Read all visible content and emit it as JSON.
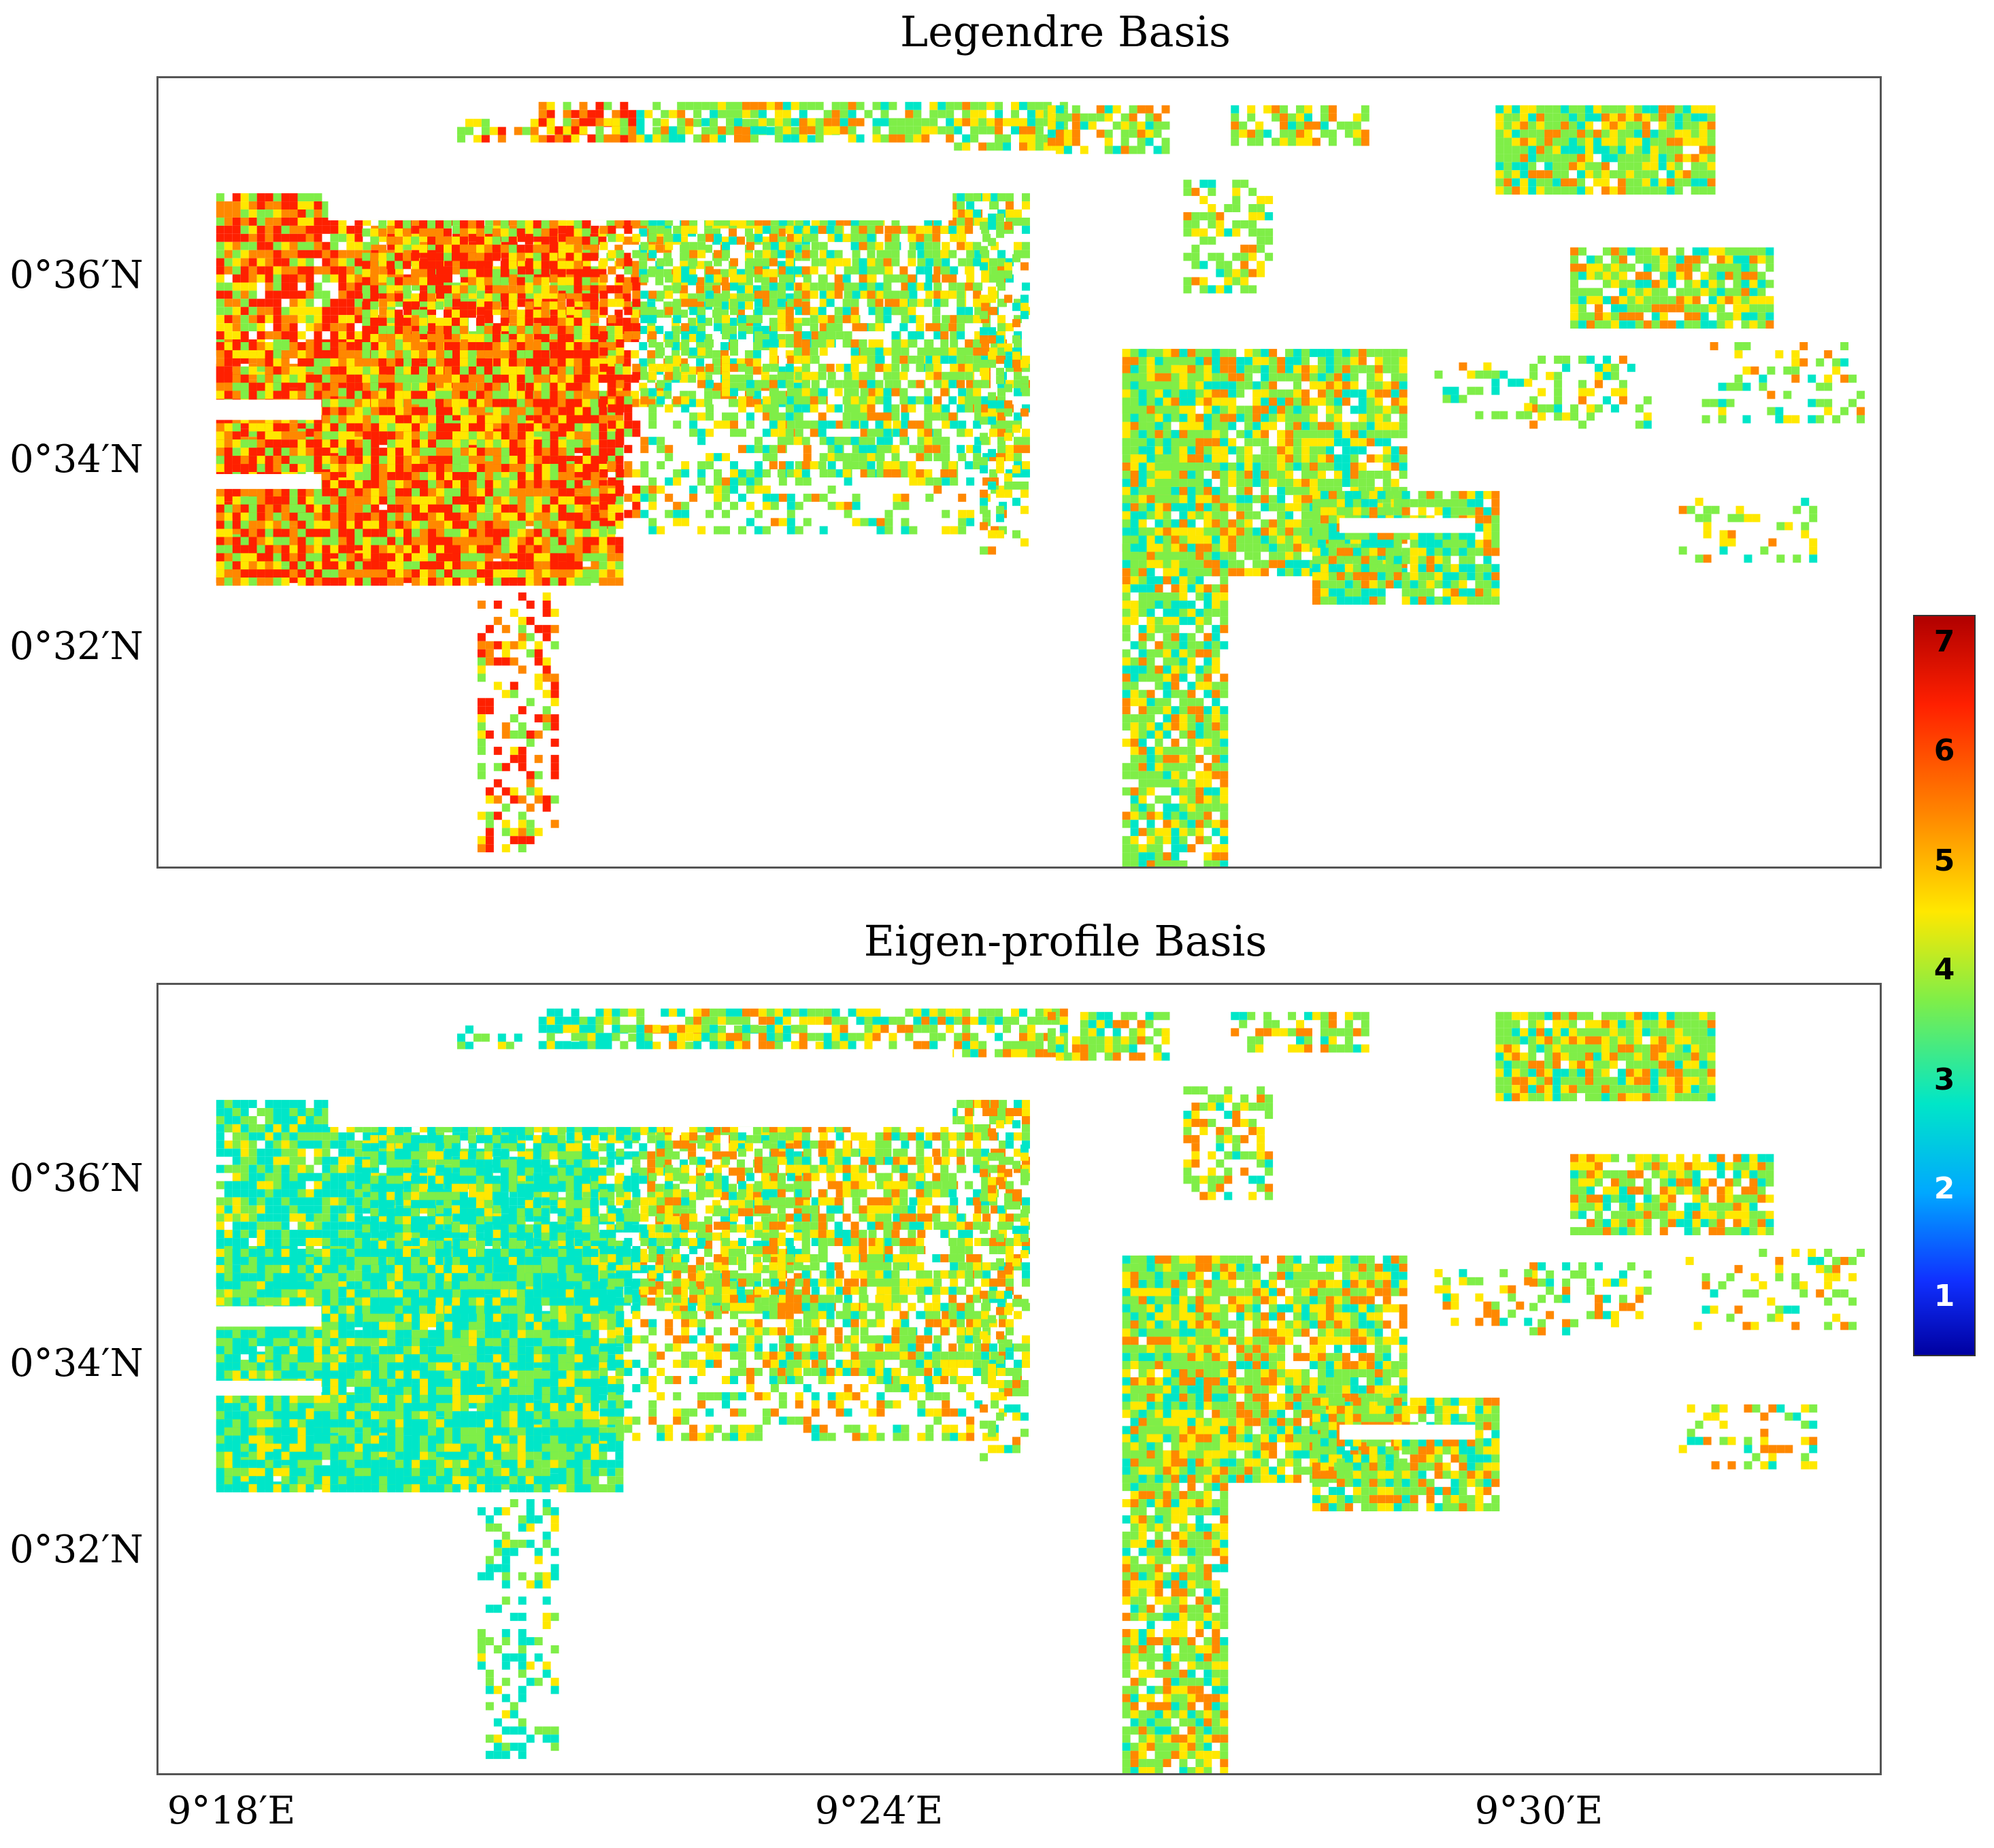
{
  "panels": [
    {
      "title": "Legendre Basis",
      "palette": "mixed-red-green"
    },
    {
      "title": "Eigen-profile Basis",
      "palette": "mostly-cyan-green"
    }
  ],
  "axes": {
    "y_tick_labels": [
      "0°36′N",
      "0°34′N",
      "0°32′N"
    ],
    "x_tick_labels": [
      "9°18′E",
      "9°24′E",
      "9°30′E"
    ]
  },
  "colorbar": {
    "labels": [
      "7",
      "6",
      "5",
      "4",
      "3",
      "2",
      "1"
    ],
    "min": 1,
    "max": 7,
    "colors": [
      "#b00000",
      "#ff2000",
      "#ff8800",
      "#ffe800",
      "#7fee48",
      "#00e6c8",
      "#00a8ff",
      "#1030ff",
      "#0000a0"
    ]
  }
}
